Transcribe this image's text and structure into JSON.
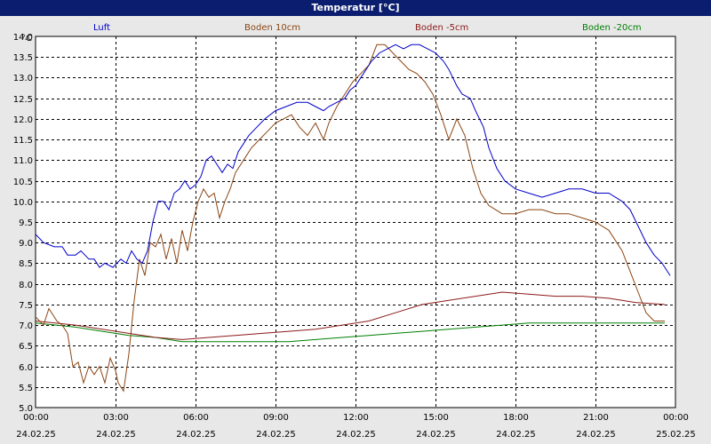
{
  "chart_data": {
    "type": "line",
    "title": "Temperatur [°C]",
    "unit": "°C",
    "xlim": [
      0,
      24
    ],
    "ylim": [
      5.0,
      14.0
    ],
    "ytick_step": 0.5,
    "x_ticks": [
      {
        "time": "00:00",
        "date": "24.02.25"
      },
      {
        "time": "03:00",
        "date": "24.02.25"
      },
      {
        "time": "06:00",
        "date": "24.02.25"
      },
      {
        "time": "09:00",
        "date": "24.02.25"
      },
      {
        "time": "12:00",
        "date": "24.02.25"
      },
      {
        "time": "15:00",
        "date": "24.02.25"
      },
      {
        "time": "18:00",
        "date": "24.02.25"
      },
      {
        "time": "21:00",
        "date": "24.02.25"
      },
      {
        "time": "00:00",
        "date": "25.02.25"
      }
    ],
    "series": [
      {
        "name": "Luft",
        "color": "#0000c8",
        "points": [
          [
            0,
            9.2
          ],
          [
            0.3,
            9.0
          ],
          [
            0.7,
            8.9
          ],
          [
            1.0,
            8.9
          ],
          [
            1.2,
            8.7
          ],
          [
            1.5,
            8.7
          ],
          [
            1.7,
            8.8
          ],
          [
            2.0,
            8.6
          ],
          [
            2.2,
            8.6
          ],
          [
            2.4,
            8.4
          ],
          [
            2.6,
            8.5
          ],
          [
            2.9,
            8.4
          ],
          [
            3.2,
            8.6
          ],
          [
            3.4,
            8.5
          ],
          [
            3.6,
            8.8
          ],
          [
            3.8,
            8.6
          ],
          [
            4.0,
            8.5
          ],
          [
            4.2,
            8.8
          ],
          [
            4.4,
            9.5
          ],
          [
            4.6,
            10.0
          ],
          [
            4.8,
            10.0
          ],
          [
            5.0,
            9.8
          ],
          [
            5.2,
            10.2
          ],
          [
            5.4,
            10.3
          ],
          [
            5.6,
            10.5
          ],
          [
            5.8,
            10.3
          ],
          [
            6.0,
            10.4
          ],
          [
            6.2,
            10.6
          ],
          [
            6.4,
            11.0
          ],
          [
            6.6,
            11.1
          ],
          [
            6.8,
            10.9
          ],
          [
            7.0,
            10.7
          ],
          [
            7.2,
            10.9
          ],
          [
            7.4,
            10.8
          ],
          [
            7.6,
            11.2
          ],
          [
            7.8,
            11.4
          ],
          [
            8.0,
            11.6
          ],
          [
            8.3,
            11.8
          ],
          [
            8.6,
            12.0
          ],
          [
            9.0,
            12.2
          ],
          [
            9.4,
            12.3
          ],
          [
            9.8,
            12.4
          ],
          [
            10.2,
            12.4
          ],
          [
            10.5,
            12.3
          ],
          [
            10.8,
            12.2
          ],
          [
            11.0,
            12.3
          ],
          [
            11.3,
            12.4
          ],
          [
            11.6,
            12.5
          ],
          [
            11.8,
            12.7
          ],
          [
            12.0,
            12.8
          ],
          [
            12.3,
            13.1
          ],
          [
            12.6,
            13.4
          ],
          [
            12.9,
            13.6
          ],
          [
            13.2,
            13.7
          ],
          [
            13.5,
            13.8
          ],
          [
            13.8,
            13.7
          ],
          [
            14.1,
            13.8
          ],
          [
            14.4,
            13.8
          ],
          [
            14.7,
            13.7
          ],
          [
            15.0,
            13.6
          ],
          [
            15.3,
            13.4
          ],
          [
            15.5,
            13.2
          ],
          [
            15.8,
            12.8
          ],
          [
            16.0,
            12.6
          ],
          [
            16.3,
            12.5
          ],
          [
            16.5,
            12.2
          ],
          [
            16.8,
            11.8
          ],
          [
            17.0,
            11.3
          ],
          [
            17.3,
            10.8
          ],
          [
            17.6,
            10.5
          ],
          [
            18.0,
            10.3
          ],
          [
            18.5,
            10.2
          ],
          [
            19.0,
            10.1
          ],
          [
            19.5,
            10.2
          ],
          [
            20.0,
            10.3
          ],
          [
            20.5,
            10.3
          ],
          [
            21.0,
            10.2
          ],
          [
            21.5,
            10.2
          ],
          [
            22.0,
            10.0
          ],
          [
            22.3,
            9.8
          ],
          [
            22.6,
            9.4
          ],
          [
            22.9,
            9.0
          ],
          [
            23.2,
            8.7
          ],
          [
            23.5,
            8.5
          ],
          [
            23.8,
            8.2
          ]
        ]
      },
      {
        "name": "Boden 10cm",
        "color": "#8b4513",
        "points": [
          [
            0,
            7.2
          ],
          [
            0.3,
            7.0
          ],
          [
            0.5,
            7.4
          ],
          [
            0.8,
            7.1
          ],
          [
            1.0,
            7.0
          ],
          [
            1.2,
            6.8
          ],
          [
            1.4,
            6.0
          ],
          [
            1.6,
            6.1
          ],
          [
            1.8,
            5.6
          ],
          [
            2.0,
            6.0
          ],
          [
            2.2,
            5.8
          ],
          [
            2.4,
            6.0
          ],
          [
            2.6,
            5.6
          ],
          [
            2.8,
            6.2
          ],
          [
            3.0,
            5.9
          ],
          [
            3.1,
            5.6
          ],
          [
            3.3,
            5.4
          ],
          [
            3.5,
            6.3
          ],
          [
            3.7,
            7.6
          ],
          [
            3.9,
            8.6
          ],
          [
            4.1,
            8.2
          ],
          [
            4.3,
            9.0
          ],
          [
            4.5,
            8.9
          ],
          [
            4.7,
            9.2
          ],
          [
            4.9,
            8.6
          ],
          [
            5.1,
            9.1
          ],
          [
            5.3,
            8.5
          ],
          [
            5.5,
            9.3
          ],
          [
            5.7,
            8.8
          ],
          [
            5.9,
            9.5
          ],
          [
            6.1,
            10.0
          ],
          [
            6.3,
            10.3
          ],
          [
            6.5,
            10.1
          ],
          [
            6.7,
            10.2
          ],
          [
            6.9,
            9.6
          ],
          [
            7.1,
            10.0
          ],
          [
            7.3,
            10.3
          ],
          [
            7.5,
            10.7
          ],
          [
            7.7,
            10.9
          ],
          [
            7.9,
            11.1
          ],
          [
            8.1,
            11.3
          ],
          [
            8.4,
            11.5
          ],
          [
            8.7,
            11.7
          ],
          [
            9.0,
            11.9
          ],
          [
            9.3,
            12.0
          ],
          [
            9.6,
            12.1
          ],
          [
            9.9,
            11.8
          ],
          [
            10.2,
            11.6
          ],
          [
            10.5,
            11.9
          ],
          [
            10.8,
            11.5
          ],
          [
            11.0,
            11.9
          ],
          [
            11.3,
            12.3
          ],
          [
            11.6,
            12.6
          ],
          [
            11.9,
            12.9
          ],
          [
            12.2,
            13.1
          ],
          [
            12.5,
            13.3
          ],
          [
            12.8,
            13.8
          ],
          [
            13.1,
            13.8
          ],
          [
            13.4,
            13.6
          ],
          [
            13.7,
            13.4
          ],
          [
            14.0,
            13.2
          ],
          [
            14.3,
            13.1
          ],
          [
            14.6,
            12.9
          ],
          [
            14.9,
            12.6
          ],
          [
            15.2,
            12.1
          ],
          [
            15.5,
            11.5
          ],
          [
            15.8,
            12.0
          ],
          [
            16.1,
            11.6
          ],
          [
            16.4,
            10.8
          ],
          [
            16.7,
            10.2
          ],
          [
            17.0,
            9.9
          ],
          [
            17.5,
            9.7
          ],
          [
            18.0,
            9.7
          ],
          [
            18.5,
            9.8
          ],
          [
            19.0,
            9.8
          ],
          [
            19.5,
            9.7
          ],
          [
            20.0,
            9.7
          ],
          [
            20.5,
            9.6
          ],
          [
            21.0,
            9.5
          ],
          [
            21.5,
            9.3
          ],
          [
            22.0,
            8.8
          ],
          [
            22.3,
            8.3
          ],
          [
            22.6,
            7.8
          ],
          [
            22.9,
            7.3
          ],
          [
            23.2,
            7.1
          ],
          [
            23.6,
            7.1
          ]
        ]
      },
      {
        "name": "Boden -5cm",
        "color": "#8b1a1a",
        "points": [
          [
            0,
            7.1
          ],
          [
            1.5,
            7.0
          ],
          [
            2.5,
            6.9
          ],
          [
            3.5,
            6.8
          ],
          [
            4.5,
            6.7
          ],
          [
            5.5,
            6.65
          ],
          [
            6.5,
            6.7
          ],
          [
            7.5,
            6.75
          ],
          [
            8.5,
            6.8
          ],
          [
            9.5,
            6.85
          ],
          [
            10.5,
            6.9
          ],
          [
            11.5,
            7.0
          ],
          [
            12.5,
            7.1
          ],
          [
            13.5,
            7.3
          ],
          [
            14.5,
            7.5
          ],
          [
            15.5,
            7.6
          ],
          [
            16.5,
            7.7
          ],
          [
            17.5,
            7.8
          ],
          [
            18.5,
            7.75
          ],
          [
            19.5,
            7.7
          ],
          [
            20.5,
            7.7
          ],
          [
            21.5,
            7.65
          ],
          [
            22.5,
            7.55
          ],
          [
            23.6,
            7.5
          ]
        ]
      },
      {
        "name": "Boden -20cm",
        "color": "#008000",
        "points": [
          [
            0,
            7.05
          ],
          [
            1.5,
            6.95
          ],
          [
            2.5,
            6.85
          ],
          [
            3.5,
            6.75
          ],
          [
            4.5,
            6.7
          ],
          [
            5.5,
            6.6
          ],
          [
            6.5,
            6.6
          ],
          [
            7.5,
            6.6
          ],
          [
            8.5,
            6.6
          ],
          [
            9.5,
            6.6
          ],
          [
            10.5,
            6.65
          ],
          [
            11.5,
            6.7
          ],
          [
            12.5,
            6.75
          ],
          [
            13.5,
            6.8
          ],
          [
            14.5,
            6.85
          ],
          [
            15.5,
            6.9
          ],
          [
            16.5,
            6.95
          ],
          [
            17.5,
            7.0
          ],
          [
            18.5,
            7.05
          ],
          [
            19.5,
            7.05
          ],
          [
            20.5,
            7.05
          ],
          [
            21.5,
            7.05
          ],
          [
            22.5,
            7.05
          ],
          [
            23.6,
            7.05
          ]
        ]
      }
    ]
  }
}
